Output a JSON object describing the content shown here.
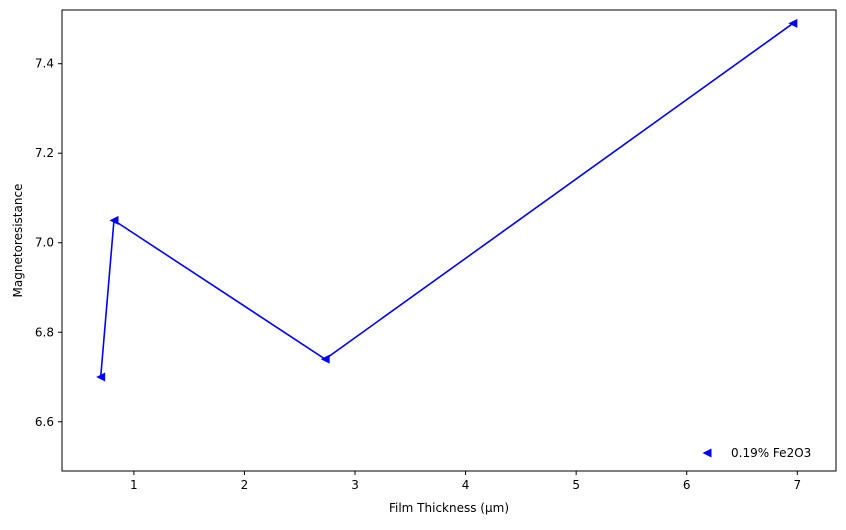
{
  "chart_data": {
    "type": "line",
    "title": "",
    "xlabel": "Film Thickness (µm)",
    "ylabel": "Magnetoresistance",
    "xlim": [
      0.35,
      7.35
    ],
    "ylim": [
      6.49,
      7.52
    ],
    "x_ticks": [
      1,
      2,
      3,
      4,
      5,
      6,
      7
    ],
    "y_ticks": [
      6.6,
      6.8,
      7.0,
      7.2,
      7.4
    ],
    "x_tick_labels": [
      "1",
      "2",
      "3",
      "4",
      "5",
      "6",
      "7"
    ],
    "y_tick_labels": [
      "6.6",
      "6.8",
      "7.0",
      "7.2",
      "7.4"
    ],
    "grid": false,
    "legend_position": "lower-right",
    "series": [
      {
        "name": "0.19% Fe2O3",
        "color": "#0000ff",
        "marker": "triangle-left",
        "x": [
          0.7,
          0.82,
          2.73,
          6.96
        ],
        "y": [
          6.7,
          7.05,
          6.74,
          7.49
        ]
      }
    ]
  }
}
